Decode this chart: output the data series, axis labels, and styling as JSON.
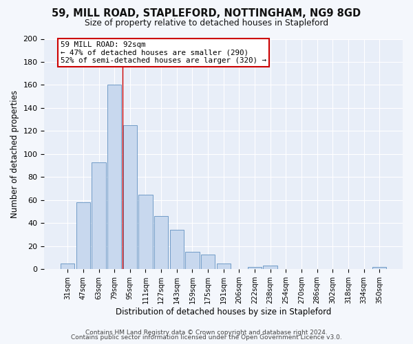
{
  "title": "59, MILL ROAD, STAPLEFORD, NOTTINGHAM, NG9 8GD",
  "subtitle": "Size of property relative to detached houses in Stapleford",
  "xlabel": "Distribution of detached houses by size in Stapleford",
  "ylabel": "Number of detached properties",
  "bar_labels": [
    "31sqm",
    "47sqm",
    "63sqm",
    "79sqm",
    "95sqm",
    "111sqm",
    "127sqm",
    "143sqm",
    "159sqm",
    "175sqm",
    "191sqm",
    "206sqm",
    "222sqm",
    "238sqm",
    "254sqm",
    "270sqm",
    "286sqm",
    "302sqm",
    "318sqm",
    "334sqm",
    "350sqm"
  ],
  "bar_values": [
    5,
    58,
    93,
    160,
    125,
    65,
    46,
    34,
    15,
    13,
    5,
    0,
    2,
    3,
    0,
    0,
    0,
    0,
    0,
    0,
    2
  ],
  "bar_color": "#c8d8ee",
  "bar_edge_color": "#6090c0",
  "vline_x_index": 3.5,
  "vline_color": "#cc0000",
  "annotation_title": "59 MILL ROAD: 92sqm",
  "annotation_line1": "← 47% of detached houses are smaller (290)",
  "annotation_line2": "52% of semi-detached houses are larger (320) →",
  "annotation_box_color": "#ffffff",
  "annotation_box_edge": "#cc0000",
  "ylim": [
    0,
    200
  ],
  "yticks": [
    0,
    20,
    40,
    60,
    80,
    100,
    120,
    140,
    160,
    180,
    200
  ],
  "footer1": "Contains HM Land Registry data © Crown copyright and database right 2024.",
  "footer2": "Contains public sector information licensed under the Open Government Licence v3.0.",
  "bg_color": "#f4f7fc",
  "plot_bg_color": "#e8eef8"
}
